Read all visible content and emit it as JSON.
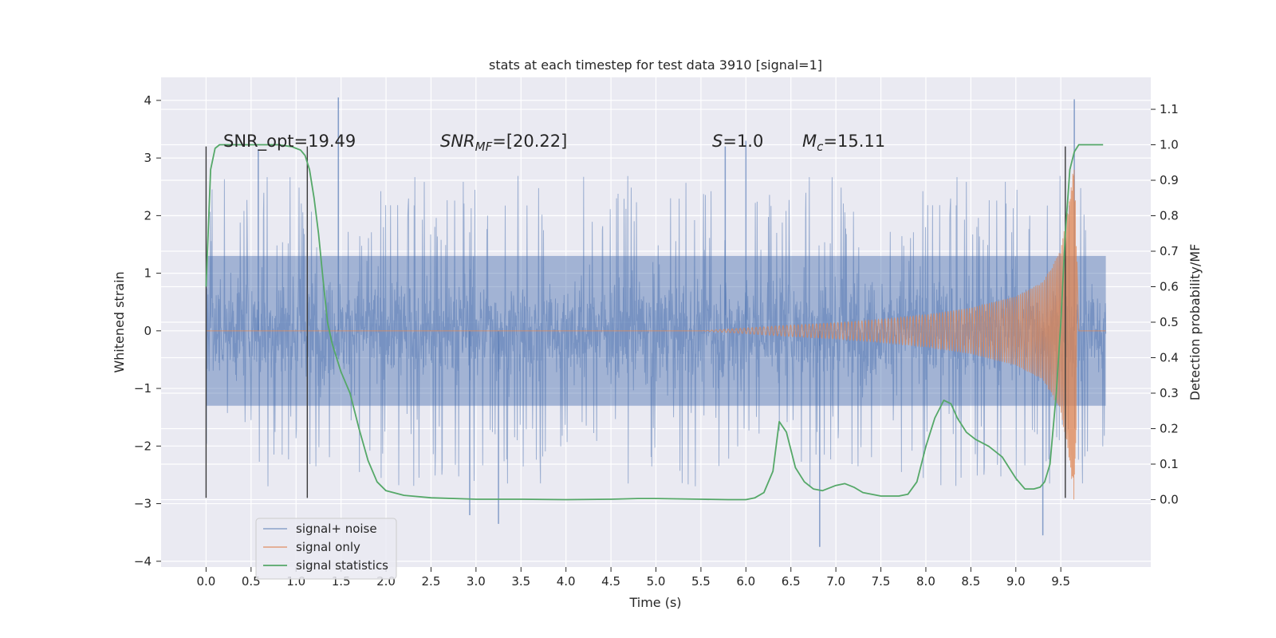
{
  "chart_data": {
    "type": "line",
    "title": "stats at each timestep for test data 3910 [signal=1]",
    "xlabel": "Time (s)",
    "ylabel": "Whitened strain",
    "ylabel_right": "Detection probability/MF",
    "xlim": [
      -0.5,
      10.5
    ],
    "ylim": [
      -4.1,
      4.4
    ],
    "ylim_right": [
      -0.19,
      1.19
    ],
    "x_ticks": [
      "0.0",
      "0.5",
      "1.0",
      "1.5",
      "2.0",
      "2.5",
      "3.0",
      "3.5",
      "4.0",
      "4.5",
      "5.0",
      "5.5",
      "6.0",
      "6.5",
      "7.0",
      "7.5",
      "8.0",
      "8.5",
      "9.0",
      "9.5"
    ],
    "y_ticks": [
      "4",
      "3",
      "2",
      "1",
      "0",
      "−1",
      "−2",
      "−3",
      "−4"
    ],
    "y_ticks_right": [
      "1.1",
      "1.0",
      "0.9",
      "0.8",
      "0.7",
      "0.6",
      "0.5",
      "0.4",
      "0.3",
      "0.2",
      "0.1",
      "0.0"
    ],
    "grid": true,
    "legend_position": "lower-left",
    "annotations": {
      "snr_opt": "SNR_opt=19.49",
      "snr_mf_label": "SNR",
      "snr_mf_sub": "MF",
      "snr_mf_value": "=[20.22]",
      "s_label": "S",
      "s_value": "=1.0",
      "mc_label": "M",
      "mc_sub": "c",
      "mc_value": "=15.11"
    },
    "vertical_markers": {
      "x": [
        0.0,
        1.125,
        9.55
      ],
      "y_range": [
        -2.9,
        3.2
      ]
    },
    "series": [
      {
        "name": "signal+ noise",
        "color": "#4c72b0",
        "description_values": "whitened strain noise, roughly ±1.3 with spikes up to ~4",
        "x_range": [
          0.0,
          10.0
        ],
        "envelope_core": 1.3,
        "peaks": [
          [
            1.47,
            4.05
          ],
          [
            9.65,
            4.02
          ],
          [
            6.0,
            3.3
          ],
          [
            0.58,
            3.15
          ],
          [
            5.77,
            3.2
          ],
          [
            6.82,
            -3.75
          ],
          [
            9.3,
            -3.55
          ],
          [
            3.25,
            -3.35
          ],
          [
            2.93,
            -3.2
          ]
        ]
      },
      {
        "name": "signal only",
        "color": "#dd8452",
        "description_values": "chirp signal, amplitude grows from 0 to ~3 near merger at ~9.65 s",
        "x": [
          0.0,
          5.5,
          6.0,
          6.5,
          7.0,
          7.5,
          8.0,
          8.5,
          9.0,
          9.3,
          9.5,
          9.6,
          9.65,
          9.7,
          10.0
        ],
        "amplitude": [
          0.0,
          0.0,
          0.05,
          0.1,
          0.14,
          0.2,
          0.28,
          0.4,
          0.6,
          0.85,
          1.4,
          2.3,
          3.0,
          0.0,
          0.0
        ]
      },
      {
        "name": "signal statistics",
        "color": "#55a868",
        "axis": "right",
        "x": [
          0.0,
          0.05,
          0.1,
          0.15,
          0.2,
          0.3,
          0.5,
          0.8,
          0.95,
          1.0,
          1.05,
          1.1,
          1.15,
          1.2,
          1.25,
          1.3,
          1.35,
          1.4,
          1.5,
          1.6,
          1.7,
          1.8,
          1.9,
          2.0,
          2.2,
          2.5,
          3.0,
          3.5,
          4.0,
          4.5,
          4.8,
          5.0,
          5.5,
          5.8,
          6.0,
          6.1,
          6.2,
          6.3,
          6.37,
          6.45,
          6.55,
          6.65,
          6.75,
          6.85,
          7.0,
          7.1,
          7.2,
          7.3,
          7.5,
          7.7,
          7.8,
          7.9,
          8.0,
          8.1,
          8.2,
          8.28,
          8.35,
          8.45,
          8.55,
          8.7,
          8.85,
          9.0,
          9.1,
          9.2,
          9.27,
          9.32,
          9.38,
          9.45,
          9.5,
          9.55,
          9.6,
          9.65,
          9.7,
          9.8,
          9.9,
          9.97
        ],
        "values": [
          0.6,
          0.93,
          0.99,
          1.0,
          1.0,
          1.0,
          1.0,
          1.0,
          0.995,
          0.99,
          0.985,
          0.97,
          0.93,
          0.85,
          0.75,
          0.62,
          0.5,
          0.44,
          0.36,
          0.3,
          0.2,
          0.11,
          0.05,
          0.025,
          0.012,
          0.005,
          0.001,
          0.001,
          0.0,
          0.001,
          0.003,
          0.003,
          0.001,
          0.0,
          0.0,
          0.005,
          0.02,
          0.08,
          0.22,
          0.19,
          0.09,
          0.05,
          0.03,
          0.025,
          0.04,
          0.045,
          0.035,
          0.02,
          0.01,
          0.01,
          0.015,
          0.05,
          0.15,
          0.23,
          0.28,
          0.27,
          0.23,
          0.19,
          0.17,
          0.15,
          0.12,
          0.06,
          0.03,
          0.03,
          0.035,
          0.05,
          0.1,
          0.3,
          0.5,
          0.75,
          0.93,
          0.98,
          1.0,
          1.0,
          1.0,
          1.0
        ]
      }
    ]
  }
}
